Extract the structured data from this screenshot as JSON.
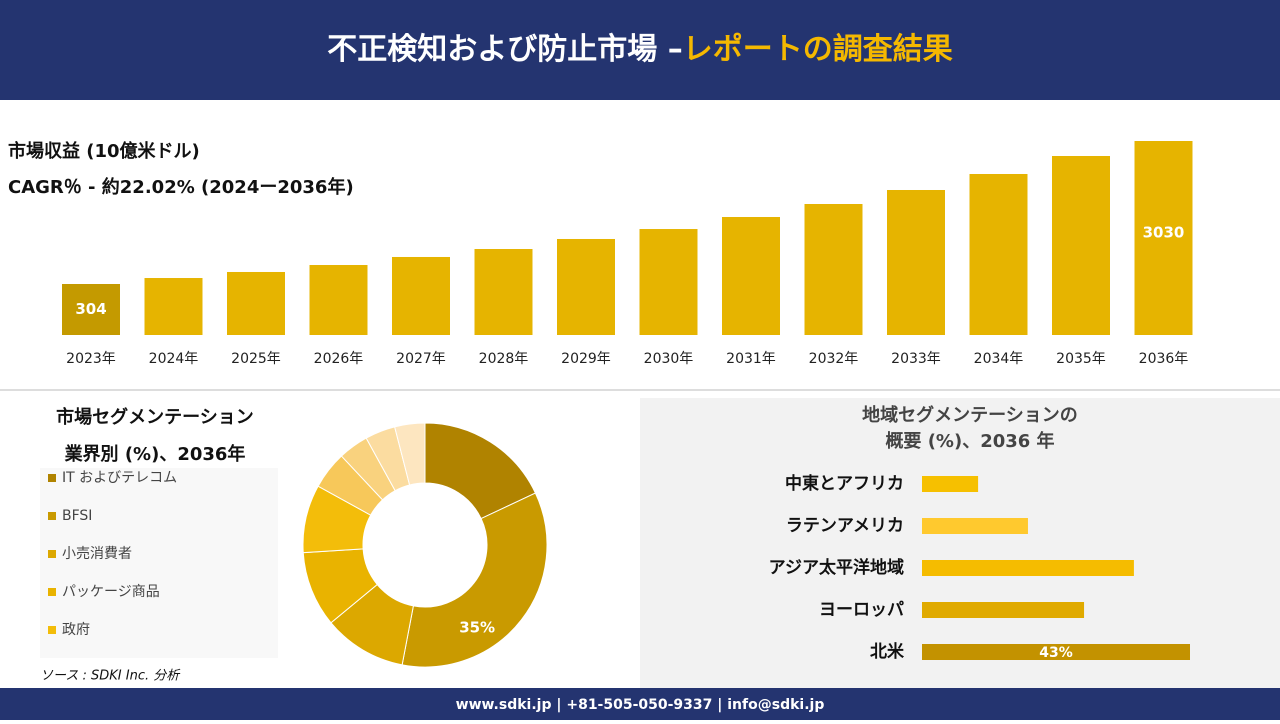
{
  "header": {
    "title_main": "不正検知および防止市場 –",
    "title_accent": "レポートの調査結果"
  },
  "chart_data": [
    {
      "type": "bar",
      "title": "市場収益 (10億米ドル)",
      "subtitle": "CAGR％ - 約22.02% (2024ー2036年)",
      "categories": [
        "2023年",
        "2024年",
        "2025年",
        "2026年",
        "2027年",
        "2028年",
        "2029年",
        "2030年",
        "2031年",
        "2032年",
        "2033年",
        "2034年",
        "2035年",
        "2036年"
      ],
      "values": [
        304,
        418,
        533,
        666,
        819,
        971,
        1162,
        1352,
        1581,
        1829,
        2096,
        2401,
        2744,
        3030
      ],
      "value_labels": [
        "304",
        null,
        null,
        null,
        null,
        null,
        null,
        null,
        null,
        null,
        null,
        null,
        null,
        "3030"
      ],
      "color": "#e6b400"
    },
    {
      "type": "donut",
      "title": "市場セグメンテーション",
      "subtitle": "業界別 (%)、2036年",
      "categories": [
        "IT およびテレコム",
        "BFSI",
        "小売消費者",
        "パッケージ商品",
        "政府",
        null,
        null,
        null,
        null
      ],
      "values": [
        18,
        35,
        11,
        10,
        9,
        5,
        4,
        4,
        4
      ],
      "value_labels": [
        null,
        "35%",
        null,
        null,
        null,
        null,
        null,
        null,
        null
      ],
      "colors": [
        "#b08300",
        "#c99a00",
        "#dca800",
        "#e9b300",
        "#f3bd0a",
        "#f7c85a",
        "#f9d27e",
        "#fbdca0",
        "#fde6c0"
      ]
    },
    {
      "type": "hbar",
      "title": "地域セグメンテーションの",
      "subtitle": "概要 (%)、2036 年",
      "categories": [
        "中東とアフリカ",
        "ラテンアメリカ",
        "アジア太平洋地域",
        "ヨーロッパ",
        "北米"
      ],
      "values": [
        9,
        17,
        34,
        26,
        43
      ],
      "value_labels": [
        null,
        null,
        null,
        null,
        "43%"
      ],
      "colors": [
        "#f6c000",
        "#ffc92e",
        "#f5bc00",
        "#e0aa00",
        "#c39200"
      ]
    }
  ],
  "source": "ソース : SDKI Inc. 分析",
  "footer": "www.sdki.jp | +81-505-050-9337 | info@sdki.jp"
}
